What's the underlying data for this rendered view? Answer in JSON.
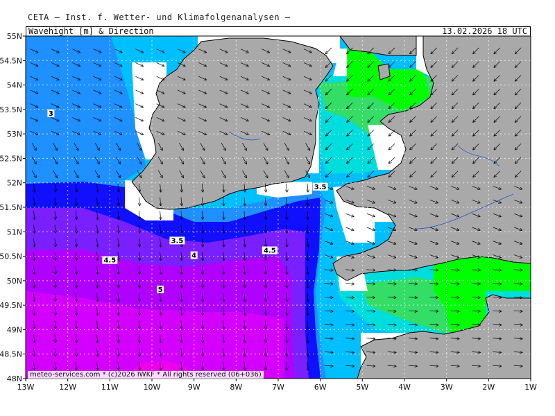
{
  "header": {
    "title": "CETA — Inst. f. Wetter- und Klimafolgenanalysen —"
  },
  "map": {
    "subtitle": "Wavehight [m] & Direction",
    "valid_time": "13.02.2026 18 UTC",
    "footer": "meteo-services.com * (c)2026 IWKF * All rights reserved (06+036)",
    "lat_labels": [
      "55N",
      "54.5N",
      "54N",
      "53.5N",
      "53N",
      "52.5N",
      "52N",
      "51.5N",
      "51N",
      "50.5N",
      "50N",
      "49.5N",
      "49N",
      "48.5N",
      "48N"
    ],
    "lon_labels": [
      "13W",
      "12W",
      "11W",
      "10W",
      "9W",
      "8W",
      "7W",
      "6W",
      "5W",
      "4W",
      "3W",
      "2W",
      "1W"
    ],
    "contour_labels": [
      {
        "text": "3",
        "lon": -12.4,
        "lat": 53.4
      },
      {
        "text": "3.5",
        "lon": -6.0,
        "lat": 51.9
      },
      {
        "text": "3.5",
        "lon": -9.4,
        "lat": 50.8
      },
      {
        "text": "4",
        "lon": -9.0,
        "lat": 50.5
      },
      {
        "text": "4.5",
        "lon": -7.2,
        "lat": 50.6
      },
      {
        "text": "4.5",
        "lon": -11.0,
        "lat": 50.4
      },
      {
        "text": "5",
        "lon": -9.8,
        "lat": 49.8
      }
    ],
    "colors": {
      "land": "#a9a9a9",
      "coast": "#000000",
      "lt2": "#00ff00",
      "h2": "#33dd66",
      "h2_5": "#00dddd",
      "h3": "#00bfff",
      "h3_5": "#1e90ff",
      "h4": "#1010ff",
      "h4_5": "#8a2be2",
      "h5": "#cc00ff",
      "h5_5": "#ee00ee"
    }
  }
}
